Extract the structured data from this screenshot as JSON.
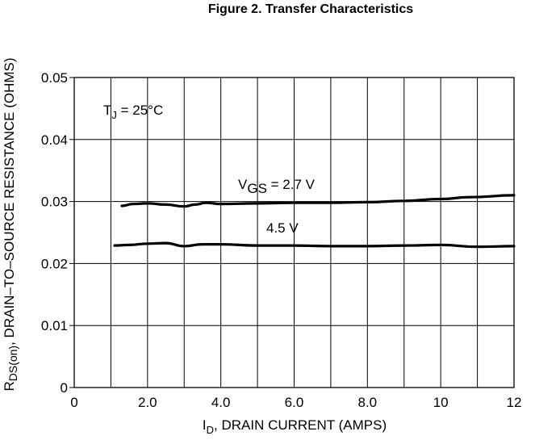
{
  "chart_data": {
    "type": "line",
    "title": "Figure 2. Transfer Characteristics",
    "xlabel": {
      "main": "I",
      "sub": "D",
      "rest": ", DRAIN CURRENT (AMPS)"
    },
    "ylabel": {
      "main": "R",
      "sub": "DS(on)",
      "rest": ", DRAIN–TO–SOURCE RESISTANCE (OHMS)"
    },
    "xlim": [
      0,
      12
    ],
    "ylim": [
      0,
      0.05
    ],
    "x_ticks": [
      0,
      2,
      4,
      6,
      8,
      10,
      12
    ],
    "x_tick_labels": [
      "0",
      "2.0",
      "4.0",
      "6.0",
      "8.0",
      "10",
      "12"
    ],
    "x_grid": [
      1,
      2,
      3,
      4,
      5,
      6,
      7,
      8,
      9,
      10,
      11,
      12
    ],
    "y_ticks": [
      0,
      0.01,
      0.02,
      0.03,
      0.04,
      0.05
    ],
    "y_tick_labels": [
      "0",
      "0.01",
      "0.02",
      "0.03",
      "0.04",
      "0.05"
    ],
    "grid": true,
    "annotations": {
      "temp": {
        "main": "T",
        "sub": "J",
        "rest": " =  25°C"
      },
      "vgs_high": {
        "main": "V",
        "sub": "GS",
        "rest": " = 2.7 V"
      },
      "vgs_low": "4.5 V"
    },
    "series": [
      {
        "label": "2.7 V",
        "x": [
          1.3,
          1.6,
          2.0,
          2.5,
          3.0,
          3.3,
          3.6,
          4.0,
          5.0,
          6.0,
          7.0,
          8.0,
          9.0,
          10.0,
          10.8,
          12.0
        ],
        "y": [
          0.0293,
          0.0296,
          0.0297,
          0.0295,
          0.0292,
          0.0295,
          0.0298,
          0.0296,
          0.0297,
          0.0298,
          0.0298,
          0.0299,
          0.0301,
          0.0304,
          0.0307,
          0.031
        ]
      },
      {
        "label": "4.5 V",
        "x": [
          1.1,
          1.5,
          2.0,
          2.5,
          3.0,
          3.5,
          4.0,
          5.0,
          6.0,
          7.0,
          8.0,
          9.0,
          10.0,
          11.0,
          12.0
        ],
        "y": [
          0.0229,
          0.023,
          0.0232,
          0.0233,
          0.0228,
          0.0231,
          0.0231,
          0.0229,
          0.0229,
          0.0228,
          0.0228,
          0.0229,
          0.023,
          0.0227,
          0.0228
        ]
      }
    ]
  }
}
